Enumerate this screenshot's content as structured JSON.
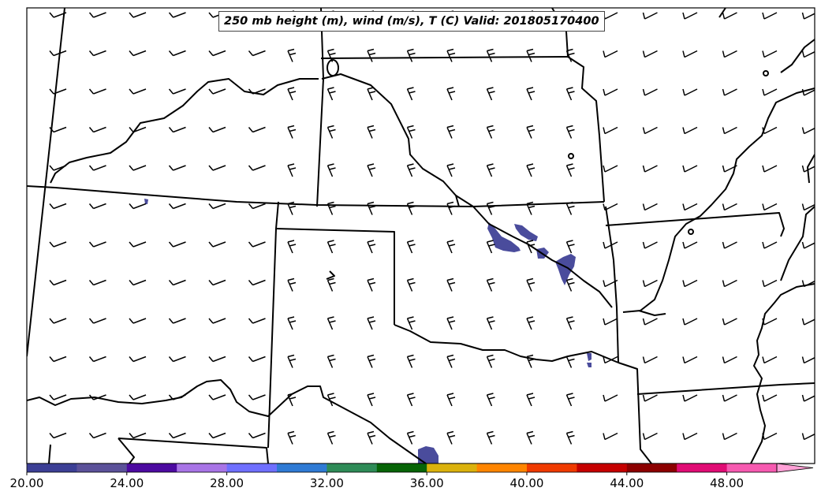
{
  "title": "250 mb height (m), wind (m/s), T (C) Valid: 201805170400",
  "colorbar": {
    "ticks": [
      "20.00",
      "24.00",
      "28.00",
      "32.00",
      "36.00",
      "40.00",
      "44.00",
      "48.00"
    ],
    "min": 20,
    "max": 51.5,
    "step": 2,
    "extend": "max",
    "colors": [
      "#3c3f95",
      "#5b5199",
      "#4c0aa0",
      "#a874e6",
      "#6f6fff",
      "#2f7ad4",
      "#2e8b57",
      "#076407",
      "#dbb20d",
      "#ff8500",
      "#ef3a00",
      "#c50000",
      "#8c0000",
      "#e00c74",
      "#f65ab0",
      "#ffa0d6"
    ]
  },
  "map": {
    "fields": [
      "250 mb height (m)",
      "wind (m/s)",
      "T (C)"
    ],
    "valid_time": "201805170400",
    "shaded_color": "#3c3f95"
  }
}
